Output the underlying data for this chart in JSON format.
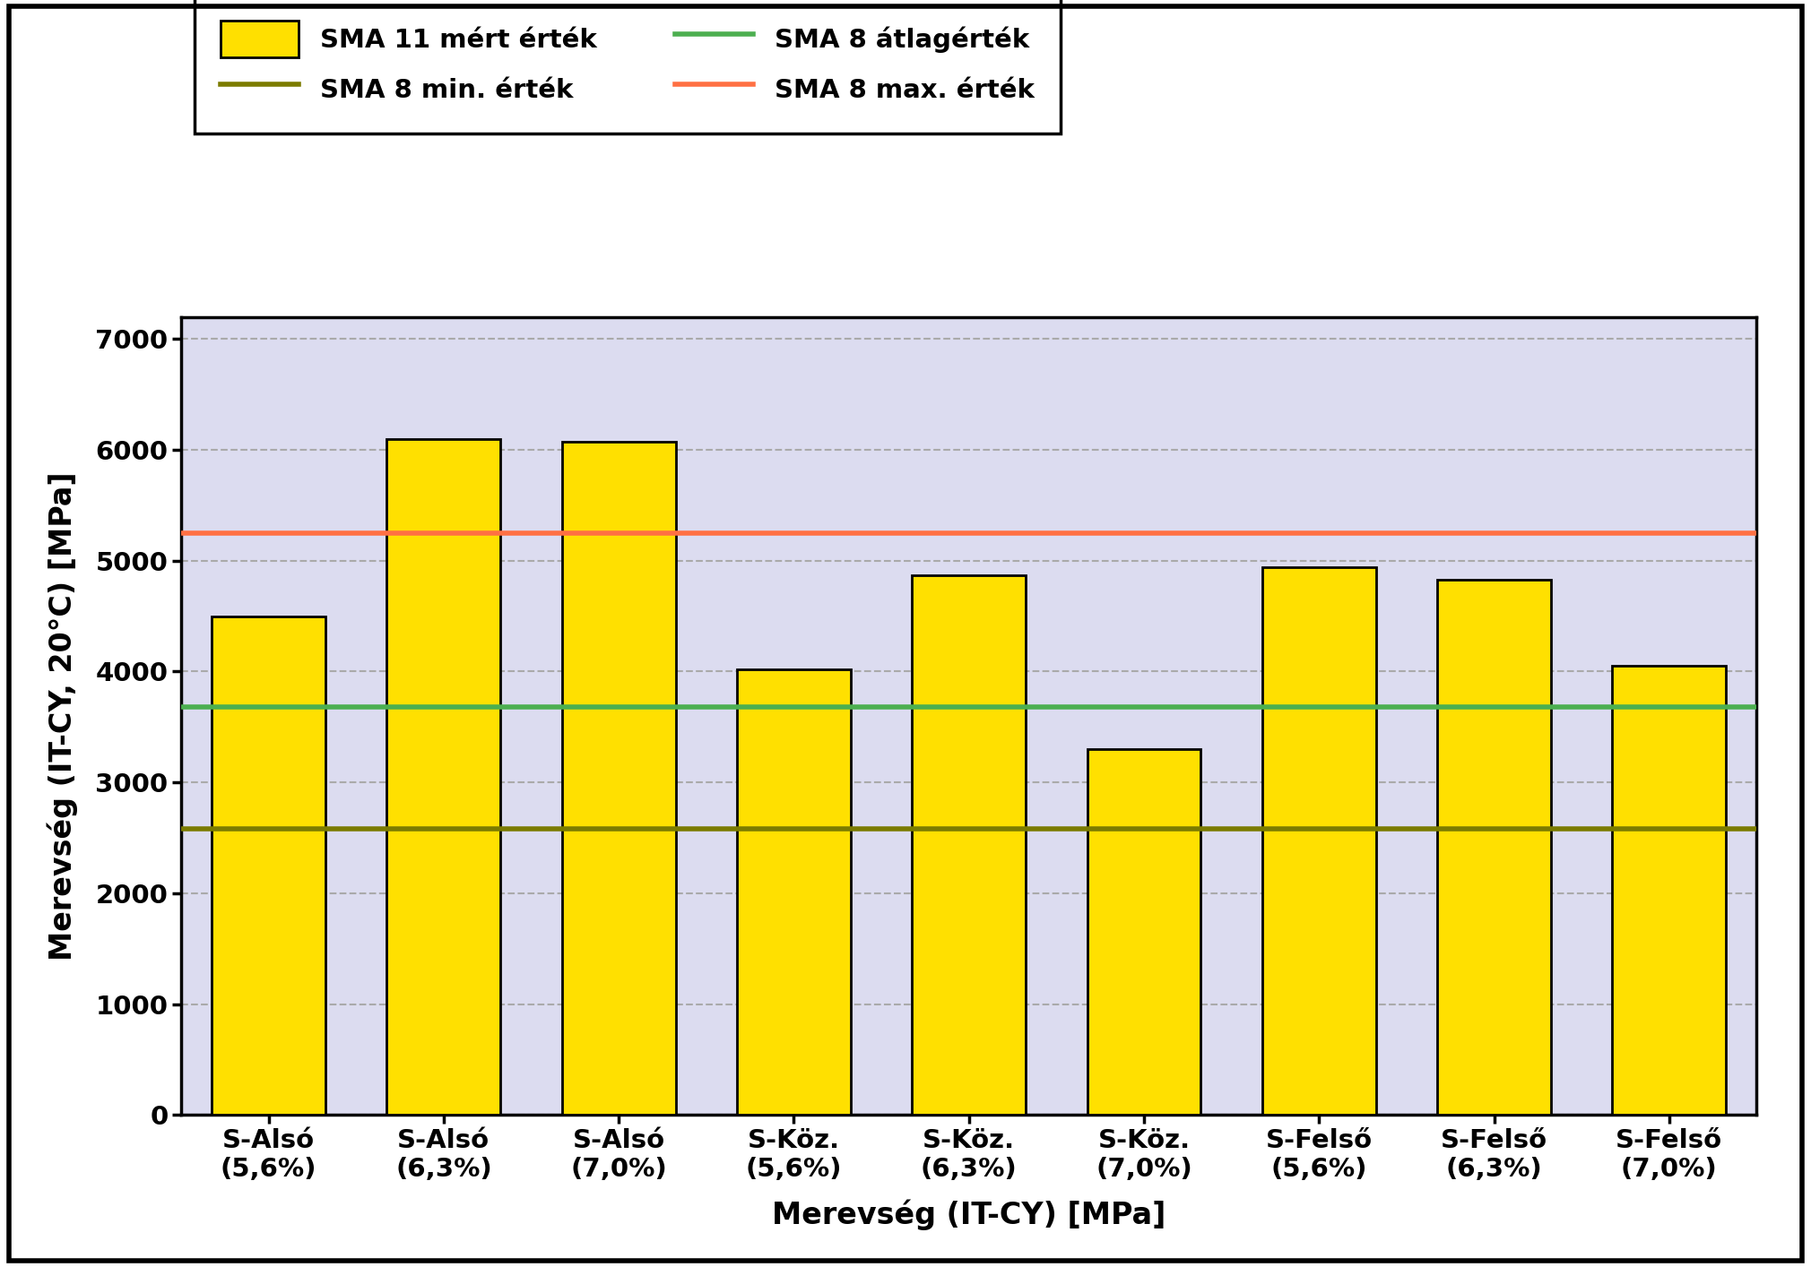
{
  "categories": [
    "S-Alsó\n(5,6%)",
    "S-Alsó\n(6,3%)",
    "S-Alsó\n(7,0%)",
    "S-Köz.\n(5,6%)",
    "S-Köz.\n(6,3%)",
    "S-Köz.\n(7,0%)",
    "S-Felső\n(5,6%)",
    "S-Felső\n(6,3%)",
    "S-Felső\n(7,0%)"
  ],
  "values": [
    4500,
    6100,
    6070,
    4020,
    4870,
    3300,
    4940,
    4830,
    4050
  ],
  "bar_color": "#FFE000",
  "bar_edgecolor": "#000000",
  "bar_linewidth": 2.0,
  "hline_min": 2580,
  "hline_avg": 3680,
  "hline_max": 5250,
  "hline_min_color": "#7B7B00",
  "hline_avg_color": "#4CAF50",
  "hline_max_color": "#FF7043",
  "hline_linewidth": 4.0,
  "ylim": [
    0,
    7200
  ],
  "yticks": [
    0,
    1000,
    2000,
    3000,
    4000,
    5000,
    6000,
    7000
  ],
  "ylabel": "Merevség (IT-CY, 20°C) [MPa]",
  "xlabel": "Merevség (IT-CY) [MPa]",
  "plot_bg_color": "#DCDCF0",
  "outer_bg_color": "#FFFFFF",
  "grid_color": "#AAAAAA",
  "legend_bar_label": "SMA 11 mért érték",
  "legend_min_label": "SMA 8 min. érték",
  "legend_avg_label": "SMA 8 átlagérték",
  "legend_max_label": "SMA 8 max. érték",
  "axis_label_fontsize": 24,
  "tick_fontsize": 21,
  "legend_fontsize": 21
}
